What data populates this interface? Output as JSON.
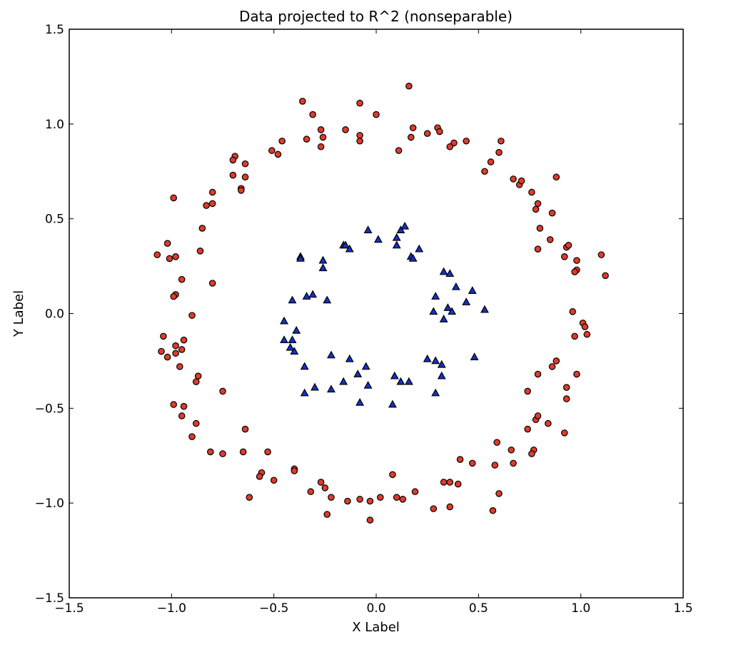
{
  "chart_data": {
    "type": "scatter",
    "title": "Data projected to R^2 (nonseparable)",
    "xlabel": "X Label",
    "ylabel": "Y Label",
    "xlim": [
      -1.5,
      1.5
    ],
    "ylim": [
      -1.5,
      1.5
    ],
    "xticks": [
      -1.5,
      -1.0,
      -0.5,
      0.0,
      0.5,
      1.0,
      1.5
    ],
    "yticks": [
      -1.5,
      -1.0,
      -0.5,
      0.0,
      0.5,
      1.0,
      1.5
    ],
    "xtick_labels": [
      "−1.5",
      "−1.0",
      "−0.5",
      "0.0",
      "0.5",
      "1.0",
      "1.5"
    ],
    "ytick_labels": [
      "−1.5",
      "−1.0",
      "−0.5",
      "0.0",
      "0.5",
      "1.0",
      "1.5"
    ],
    "grid": false,
    "series": [
      {
        "marker": "circle",
        "color": "#e03b2a",
        "edge_color": "#000000",
        "points": [
          [
            -0.36,
            1.12
          ],
          [
            -0.31,
            1.05
          ],
          [
            -0.08,
            1.11
          ],
          [
            0.0,
            1.05
          ],
          [
            0.16,
            1.2
          ],
          [
            -0.27,
            0.97
          ],
          [
            -0.26,
            0.93
          ],
          [
            -0.34,
            0.92
          ],
          [
            -0.27,
            0.88
          ],
          [
            -0.15,
            0.97
          ],
          [
            -0.08,
            0.94
          ],
          [
            -0.08,
            0.91
          ],
          [
            0.11,
            0.86
          ],
          [
            0.18,
            0.98
          ],
          [
            0.17,
            0.93
          ],
          [
            0.25,
            0.95
          ],
          [
            0.3,
            0.98
          ],
          [
            0.31,
            0.96
          ],
          [
            0.38,
            0.9
          ],
          [
            0.44,
            0.91
          ],
          [
            0.36,
            0.88
          ],
          [
            -0.46,
            0.91
          ],
          [
            -0.51,
            0.86
          ],
          [
            -0.48,
            0.84
          ],
          [
            -0.69,
            0.83
          ],
          [
            -0.7,
            0.81
          ],
          [
            -0.64,
            0.79
          ],
          [
            -0.7,
            0.73
          ],
          [
            -0.64,
            0.72
          ],
          [
            -0.66,
            0.66
          ],
          [
            -0.66,
            0.65
          ],
          [
            -0.99,
            0.61
          ],
          [
            -0.8,
            0.64
          ],
          [
            -0.8,
            0.58
          ],
          [
            -0.83,
            0.57
          ],
          [
            -0.85,
            0.45
          ],
          [
            -1.02,
            0.37
          ],
          [
            -0.86,
            0.33
          ],
          [
            -1.07,
            0.31
          ],
          [
            -0.98,
            0.3
          ],
          [
            -1.01,
            0.29
          ],
          [
            -0.95,
            0.18
          ],
          [
            -0.8,
            0.16
          ],
          [
            -0.98,
            0.1
          ],
          [
            -0.99,
            0.09
          ],
          [
            -0.9,
            -0.01
          ],
          [
            -1.04,
            -0.12
          ],
          [
            -0.94,
            -0.14
          ],
          [
            -0.98,
            -0.17
          ],
          [
            -0.95,
            -0.19
          ],
          [
            -0.98,
            -0.21
          ],
          [
            -1.05,
            -0.2
          ],
          [
            -1.02,
            -0.23
          ],
          [
            -0.96,
            -0.28
          ],
          [
            -0.87,
            -0.33
          ],
          [
            -0.88,
            -0.36
          ],
          [
            -0.75,
            -0.41
          ],
          [
            -0.99,
            -0.48
          ],
          [
            -0.94,
            -0.49
          ],
          [
            -0.95,
            -0.54
          ],
          [
            -0.88,
            -0.58
          ],
          [
            -0.64,
            -0.61
          ],
          [
            -0.9,
            -0.65
          ],
          [
            -0.81,
            -0.73
          ],
          [
            -0.75,
            -0.74
          ],
          [
            -0.65,
            -0.73
          ],
          [
            -0.53,
            -0.73
          ],
          [
            -0.56,
            -0.84
          ],
          [
            -0.57,
            -0.86
          ],
          [
            -0.5,
            -0.88
          ],
          [
            -0.4,
            -0.82
          ],
          [
            -0.4,
            -0.83
          ],
          [
            -0.62,
            -0.97
          ],
          [
            -0.32,
            -0.94
          ],
          [
            -0.27,
            -0.89
          ],
          [
            -0.25,
            -0.92
          ],
          [
            -0.22,
            -0.97
          ],
          [
            -0.24,
            -1.06
          ],
          [
            -0.14,
            -0.99
          ],
          [
            -0.08,
            -0.98
          ],
          [
            -0.03,
            -0.99
          ],
          [
            0.02,
            -0.97
          ],
          [
            -0.03,
            -1.09
          ],
          [
            0.08,
            -0.85
          ],
          [
            0.1,
            -0.97
          ],
          [
            0.13,
            -0.98
          ],
          [
            0.19,
            -0.94
          ],
          [
            0.28,
            -1.03
          ],
          [
            0.33,
            -0.89
          ],
          [
            0.36,
            -0.89
          ],
          [
            0.36,
            -1.02
          ],
          [
            0.41,
            -0.77
          ],
          [
            0.4,
            -0.9
          ],
          [
            0.47,
            -0.79
          ],
          [
            0.57,
            -1.04
          ],
          [
            0.6,
            -0.95
          ],
          [
            0.58,
            -0.8
          ],
          [
            0.59,
            -0.68
          ],
          [
            0.66,
            -0.72
          ],
          [
            0.67,
            -0.79
          ],
          [
            0.74,
            -0.61
          ],
          [
            0.77,
            -0.72
          ],
          [
            0.76,
            -0.74
          ],
          [
            0.78,
            -0.56
          ],
          [
            0.79,
            -0.54
          ],
          [
            0.84,
            -0.58
          ],
          [
            0.92,
            -0.63
          ],
          [
            0.74,
            -0.41
          ],
          [
            0.79,
            -0.32
          ],
          [
            0.86,
            -0.28
          ],
          [
            0.88,
            -0.25
          ],
          [
            0.98,
            -0.32
          ],
          [
            0.93,
            -0.39
          ],
          [
            0.93,
            -0.45
          ],
          [
            0.96,
            0.01
          ],
          [
            1.01,
            -0.05
          ],
          [
            1.02,
            -0.07
          ],
          [
            1.03,
            -0.11
          ],
          [
            0.97,
            -0.12
          ],
          [
            0.53,
            0.75
          ],
          [
            0.56,
            0.8
          ],
          [
            0.6,
            0.85
          ],
          [
            0.61,
            0.91
          ],
          [
            0.67,
            0.71
          ],
          [
            0.7,
            0.68
          ],
          [
            0.71,
            0.7
          ],
          [
            0.76,
            0.64
          ],
          [
            0.79,
            0.58
          ],
          [
            0.78,
            0.55
          ],
          [
            0.88,
            0.72
          ],
          [
            0.86,
            0.53
          ],
          [
            0.8,
            0.45
          ],
          [
            0.85,
            0.39
          ],
          [
            0.79,
            0.34
          ],
          [
            0.93,
            0.35
          ],
          [
            0.94,
            0.36
          ],
          [
            0.92,
            0.3
          ],
          [
            0.98,
            0.28
          ],
          [
            0.98,
            0.23
          ],
          [
            0.97,
            0.22
          ],
          [
            1.1,
            0.31
          ],
          [
            1.12,
            0.2
          ]
        ]
      },
      {
        "marker": "triangle",
        "color": "#1530c8",
        "edge_color": "#000000",
        "points": [
          [
            -0.37,
            0.3
          ],
          [
            -0.37,
            0.29
          ],
          [
            -0.26,
            0.28
          ],
          [
            -0.26,
            0.24
          ],
          [
            -0.16,
            0.36
          ],
          [
            -0.15,
            0.36
          ],
          [
            -0.13,
            0.34
          ],
          [
            -0.04,
            0.44
          ],
          [
            0.01,
            0.39
          ],
          [
            0.1,
            0.4
          ],
          [
            0.12,
            0.44
          ],
          [
            0.14,
            0.46
          ],
          [
            0.1,
            0.36
          ],
          [
            0.17,
            0.3
          ],
          [
            0.18,
            0.29
          ],
          [
            0.21,
            0.34
          ],
          [
            -0.41,
            0.07
          ],
          [
            -0.34,
            0.09
          ],
          [
            -0.31,
            0.1
          ],
          [
            -0.24,
            0.07
          ],
          [
            0.33,
            0.22
          ],
          [
            0.36,
            0.21
          ],
          [
            0.39,
            0.14
          ],
          [
            0.29,
            0.09
          ],
          [
            0.47,
            0.12
          ],
          [
            0.44,
            0.06
          ],
          [
            0.35,
            0.03
          ],
          [
            0.37,
            0.01
          ],
          [
            0.28,
            0.01
          ],
          [
            0.33,
            -0.03
          ],
          [
            0.53,
            0.02
          ],
          [
            -0.45,
            -0.04
          ],
          [
            -0.39,
            -0.09
          ],
          [
            -0.45,
            -0.14
          ],
          [
            -0.41,
            -0.14
          ],
          [
            -0.42,
            -0.18
          ],
          [
            -0.4,
            -0.2
          ],
          [
            -0.35,
            -0.28
          ],
          [
            -0.22,
            -0.22
          ],
          [
            -0.13,
            -0.24
          ],
          [
            -0.09,
            -0.32
          ],
          [
            -0.05,
            -0.28
          ],
          [
            -0.16,
            -0.36
          ],
          [
            -0.22,
            -0.4
          ],
          [
            -0.3,
            -0.39
          ],
          [
            -0.35,
            -0.42
          ],
          [
            -0.04,
            -0.38
          ],
          [
            -0.08,
            -0.47
          ],
          [
            0.09,
            -0.33
          ],
          [
            0.12,
            -0.36
          ],
          [
            0.16,
            -0.36
          ],
          [
            0.08,
            -0.48
          ],
          [
            0.25,
            -0.24
          ],
          [
            0.29,
            -0.25
          ],
          [
            0.32,
            -0.27
          ],
          [
            0.32,
            -0.33
          ],
          [
            0.29,
            -0.42
          ],
          [
            0.48,
            -0.23
          ]
        ]
      }
    ]
  }
}
